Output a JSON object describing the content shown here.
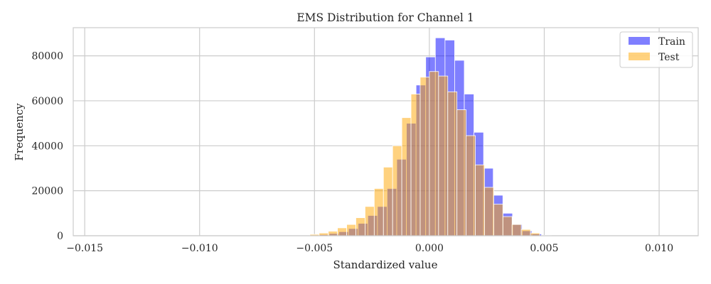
{
  "chart_data": {
    "type": "histogram",
    "title": "EMS Distribution for Channel 1",
    "xlabel": "Standardized value",
    "ylabel": "Frequency",
    "xlim": [
      -0.0155,
      0.0117
    ],
    "ylim": [
      0,
      92500
    ],
    "xticks": [
      -0.015,
      -0.01,
      -0.005,
      0.0,
      0.005,
      0.01
    ],
    "xtick_labels": [
      "−0.015",
      "−0.010",
      "−0.005",
      "0.000",
      "0.005",
      "0.010"
    ],
    "yticks": [
      0,
      20000,
      40000,
      60000,
      80000
    ],
    "ytick_labels": [
      "0",
      "20000",
      "40000",
      "60000",
      "80000"
    ],
    "grid": true,
    "legend_position": "top-right",
    "series": [
      {
        "name": "Train",
        "color": "#0000ff",
        "alpha": 0.5,
        "bins": [
          [
            -0.0149,
            -0.0146,
            0
          ],
          [
            -0.0052,
            -0.00478,
            300
          ],
          [
            -0.00478,
            -0.00436,
            500
          ],
          [
            -0.00436,
            -0.00394,
            1000
          ],
          [
            -0.00394,
            -0.00352,
            1800
          ],
          [
            -0.00352,
            -0.0031,
            3200
          ],
          [
            -0.0031,
            -0.00268,
            5500
          ],
          [
            -0.00268,
            -0.00226,
            9000
          ],
          [
            -0.00226,
            -0.00184,
            13000
          ],
          [
            -0.00184,
            -0.00142,
            21000
          ],
          [
            -0.00142,
            -0.001,
            34000
          ],
          [
            -0.001,
            -0.00058,
            50000
          ],
          [
            -0.00058,
            -0.00016,
            67000
          ],
          [
            -0.00016,
            0.00026,
            79500
          ],
          [
            0.00026,
            0.00068,
            88000
          ],
          [
            0.00068,
            0.0011,
            87000
          ],
          [
            0.0011,
            0.00152,
            78000
          ],
          [
            0.00152,
            0.00194,
            63000
          ],
          [
            0.00194,
            0.00236,
            46000
          ],
          [
            0.00236,
            0.00278,
            30000
          ],
          [
            0.00278,
            0.0032,
            18000
          ],
          [
            0.0032,
            0.00362,
            10000
          ],
          [
            0.00362,
            0.00404,
            5000
          ],
          [
            0.00404,
            0.00446,
            2200
          ],
          [
            0.00446,
            0.00488,
            800
          ],
          [
            0.00488,
            0.0053,
            200
          ],
          [
            0.0104,
            0.0107,
            0
          ]
        ]
      },
      {
        "name": "Test",
        "color": "#ffa500",
        "alpha": 0.5,
        "bins": [
          [
            -0.0052,
            -0.0048,
            600
          ],
          [
            -0.0048,
            -0.0044,
            1200
          ],
          [
            -0.0044,
            -0.004,
            2000
          ],
          [
            -0.004,
            -0.0036,
            3500
          ],
          [
            -0.0036,
            -0.0032,
            5000
          ],
          [
            -0.0032,
            -0.0028,
            8000
          ],
          [
            -0.0028,
            -0.0024,
            13000
          ],
          [
            -0.0024,
            -0.002,
            21000
          ],
          [
            -0.002,
            -0.0016,
            30500
          ],
          [
            -0.0016,
            -0.0012,
            40000
          ],
          [
            -0.0012,
            -0.0008,
            52500
          ],
          [
            -0.0008,
            -0.0004,
            63000
          ],
          [
            -0.0004,
            0.0,
            70500
          ],
          [
            0.0,
            0.0004,
            73000
          ],
          [
            0.0004,
            0.0008,
            71000
          ],
          [
            0.0008,
            0.0012,
            64000
          ],
          [
            0.0012,
            0.0016,
            56000
          ],
          [
            0.0016,
            0.002,
            44500
          ],
          [
            0.002,
            0.0024,
            31500
          ],
          [
            0.0024,
            0.0028,
            21500
          ],
          [
            0.0028,
            0.0032,
            14000
          ],
          [
            0.0032,
            0.0036,
            8500
          ],
          [
            0.0036,
            0.004,
            5000
          ],
          [
            0.004,
            0.0044,
            2800
          ],
          [
            0.0044,
            0.0048,
            1200
          ]
        ]
      }
    ]
  }
}
